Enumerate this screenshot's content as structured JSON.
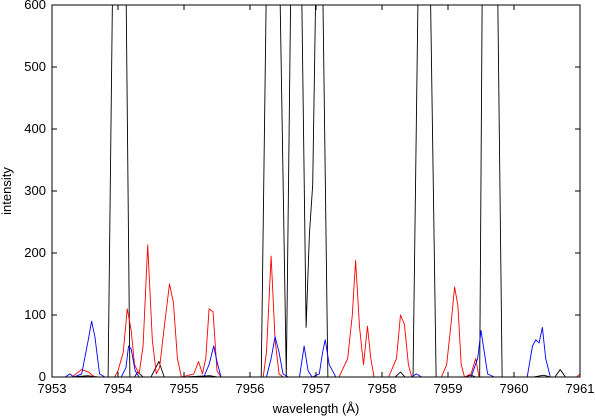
{
  "chart_data": {
    "type": "line",
    "title": "",
    "xlabel": "wavelength (Å)",
    "ylabel": "intensity",
    "xlim": [
      7953,
      7961
    ],
    "ylim": [
      0,
      600
    ],
    "x_ticks": [
      7953,
      7954,
      7955,
      7956,
      7957,
      7958,
      7959,
      7960,
      7961
    ],
    "y_ticks": [
      0,
      100,
      200,
      300,
      400,
      500,
      600
    ],
    "grid": false,
    "legend": "none",
    "series": [
      {
        "color": "#000000",
        "points": [
          [
            7953.0,
            0
          ],
          [
            7953.3,
            0
          ],
          [
            7953.55,
            2
          ],
          [
            7953.7,
            0
          ],
          [
            7953.85,
            0
          ],
          [
            7953.92,
            650
          ],
          [
            7954.0,
            620
          ],
          [
            7954.12,
            650
          ],
          [
            7954.18,
            0
          ],
          [
            7954.25,
            0
          ],
          [
            7954.3,
            8
          ],
          [
            7954.38,
            0
          ],
          [
            7954.5,
            0
          ],
          [
            7954.62,
            25
          ],
          [
            7954.7,
            0
          ],
          [
            7955.0,
            0
          ],
          [
            7955.4,
            2
          ],
          [
            7955.5,
            0
          ],
          [
            7956.0,
            0
          ],
          [
            7956.17,
            0
          ],
          [
            7956.25,
            650
          ],
          [
            7956.38,
            620
          ],
          [
            7956.45,
            650
          ],
          [
            7956.55,
            0
          ],
          [
            7956.62,
            650
          ],
          [
            7956.7,
            620
          ],
          [
            7956.78,
            650
          ],
          [
            7956.85,
            80
          ],
          [
            7956.9,
            230
          ],
          [
            7956.95,
            310
          ],
          [
            7957.0,
            650
          ],
          [
            7957.05,
            620
          ],
          [
            7957.1,
            650
          ],
          [
            7957.18,
            0
          ],
          [
            7957.5,
            0
          ],
          [
            7958.2,
            0
          ],
          [
            7958.28,
            8
          ],
          [
            7958.35,
            0
          ],
          [
            7958.47,
            0
          ],
          [
            7958.55,
            650
          ],
          [
            7958.65,
            620
          ],
          [
            7958.73,
            650
          ],
          [
            7958.82,
            0
          ],
          [
            7959.25,
            0
          ],
          [
            7959.35,
            3
          ],
          [
            7959.42,
            0
          ],
          [
            7959.48,
            0
          ],
          [
            7959.52,
            650
          ],
          [
            7959.65,
            620
          ],
          [
            7959.75,
            650
          ],
          [
            7959.82,
            0
          ],
          [
            7960.3,
            0
          ],
          [
            7960.45,
            3
          ],
          [
            7960.55,
            0
          ],
          [
            7960.62,
            0
          ],
          [
            7960.7,
            12
          ],
          [
            7960.78,
            0
          ],
          [
            7961.0,
            0
          ]
        ]
      },
      {
        "color": "#ff0000",
        "points": [
          [
            7953.0,
            0
          ],
          [
            7953.3,
            0
          ],
          [
            7953.45,
            12
          ],
          [
            7953.55,
            8
          ],
          [
            7953.65,
            0
          ],
          [
            7953.95,
            0
          ],
          [
            7954.0,
            10
          ],
          [
            7954.08,
            40
          ],
          [
            7954.14,
            110
          ],
          [
            7954.2,
            75
          ],
          [
            7954.25,
            20
          ],
          [
            7954.32,
            5
          ],
          [
            7954.38,
            50
          ],
          [
            7954.45,
            213
          ],
          [
            7954.52,
            60
          ],
          [
            7954.58,
            5
          ],
          [
            7954.63,
            15
          ],
          [
            7954.7,
            80
          ],
          [
            7954.78,
            150
          ],
          [
            7954.84,
            120
          ],
          [
            7954.9,
            30
          ],
          [
            7954.96,
            0
          ],
          [
            7955.15,
            5
          ],
          [
            7955.22,
            25
          ],
          [
            7955.28,
            5
          ],
          [
            7955.33,
            30
          ],
          [
            7955.38,
            110
          ],
          [
            7955.44,
            105
          ],
          [
            7955.5,
            10
          ],
          [
            7955.56,
            0
          ],
          [
            7956.2,
            0
          ],
          [
            7956.25,
            40
          ],
          [
            7956.32,
            195
          ],
          [
            7956.38,
            60
          ],
          [
            7956.44,
            5
          ],
          [
            7956.5,
            0
          ],
          [
            7957.35,
            0
          ],
          [
            7957.48,
            30
          ],
          [
            7957.55,
            100
          ],
          [
            7957.6,
            188
          ],
          [
            7957.66,
            80
          ],
          [
            7957.72,
            20
          ],
          [
            7957.78,
            82
          ],
          [
            7957.83,
            30
          ],
          [
            7957.88,
            0
          ],
          [
            7958.1,
            0
          ],
          [
            7958.22,
            30
          ],
          [
            7958.28,
            100
          ],
          [
            7958.34,
            85
          ],
          [
            7958.4,
            20
          ],
          [
            7958.45,
            0
          ],
          [
            7958.9,
            0
          ],
          [
            7958.98,
            20
          ],
          [
            7959.05,
            90
          ],
          [
            7959.1,
            145
          ],
          [
            7959.15,
            115
          ],
          [
            7959.2,
            20
          ],
          [
            7959.25,
            0
          ],
          [
            7959.35,
            5
          ],
          [
            7959.42,
            30
          ],
          [
            7959.47,
            0
          ],
          [
            7960.0,
            0
          ],
          [
            7960.95,
            0
          ],
          [
            7961.0,
            5
          ]
        ]
      },
      {
        "color": "#0000ff",
        "points": [
          [
            7953.0,
            0
          ],
          [
            7953.2,
            0
          ],
          [
            7953.27,
            5
          ],
          [
            7953.33,
            0
          ],
          [
            7953.45,
            5
          ],
          [
            7953.55,
            60
          ],
          [
            7953.6,
            90
          ],
          [
            7953.65,
            65
          ],
          [
            7953.72,
            5
          ],
          [
            7953.8,
            0
          ],
          [
            7954.05,
            0
          ],
          [
            7954.12,
            15
          ],
          [
            7954.16,
            50
          ],
          [
            7954.2,
            45
          ],
          [
            7954.26,
            10
          ],
          [
            7954.32,
            0
          ],
          [
            7955.3,
            0
          ],
          [
            7955.38,
            20
          ],
          [
            7955.45,
            50
          ],
          [
            7955.5,
            25
          ],
          [
            7955.56,
            0
          ],
          [
            7956.25,
            0
          ],
          [
            7956.32,
            30
          ],
          [
            7956.38,
            65
          ],
          [
            7956.44,
            40
          ],
          [
            7956.5,
            5
          ],
          [
            7956.58,
            0
          ],
          [
            7956.75,
            0
          ],
          [
            7956.82,
            50
          ],
          [
            7956.88,
            10
          ],
          [
            7956.94,
            0
          ],
          [
            7957.05,
            5
          ],
          [
            7957.1,
            40
          ],
          [
            7957.14,
            60
          ],
          [
            7957.2,
            20
          ],
          [
            7957.3,
            0
          ],
          [
            7958.45,
            0
          ],
          [
            7958.52,
            5
          ],
          [
            7958.6,
            0
          ],
          [
            7959.35,
            0
          ],
          [
            7959.45,
            30
          ],
          [
            7959.5,
            75
          ],
          [
            7959.55,
            40
          ],
          [
            7959.6,
            5
          ],
          [
            7959.7,
            0
          ],
          [
            7960.2,
            0
          ],
          [
            7960.28,
            50
          ],
          [
            7960.33,
            60
          ],
          [
            7960.38,
            55
          ],
          [
            7960.43,
            80
          ],
          [
            7960.48,
            30
          ],
          [
            7960.55,
            0
          ],
          [
            7961.0,
            0
          ]
        ]
      }
    ]
  }
}
